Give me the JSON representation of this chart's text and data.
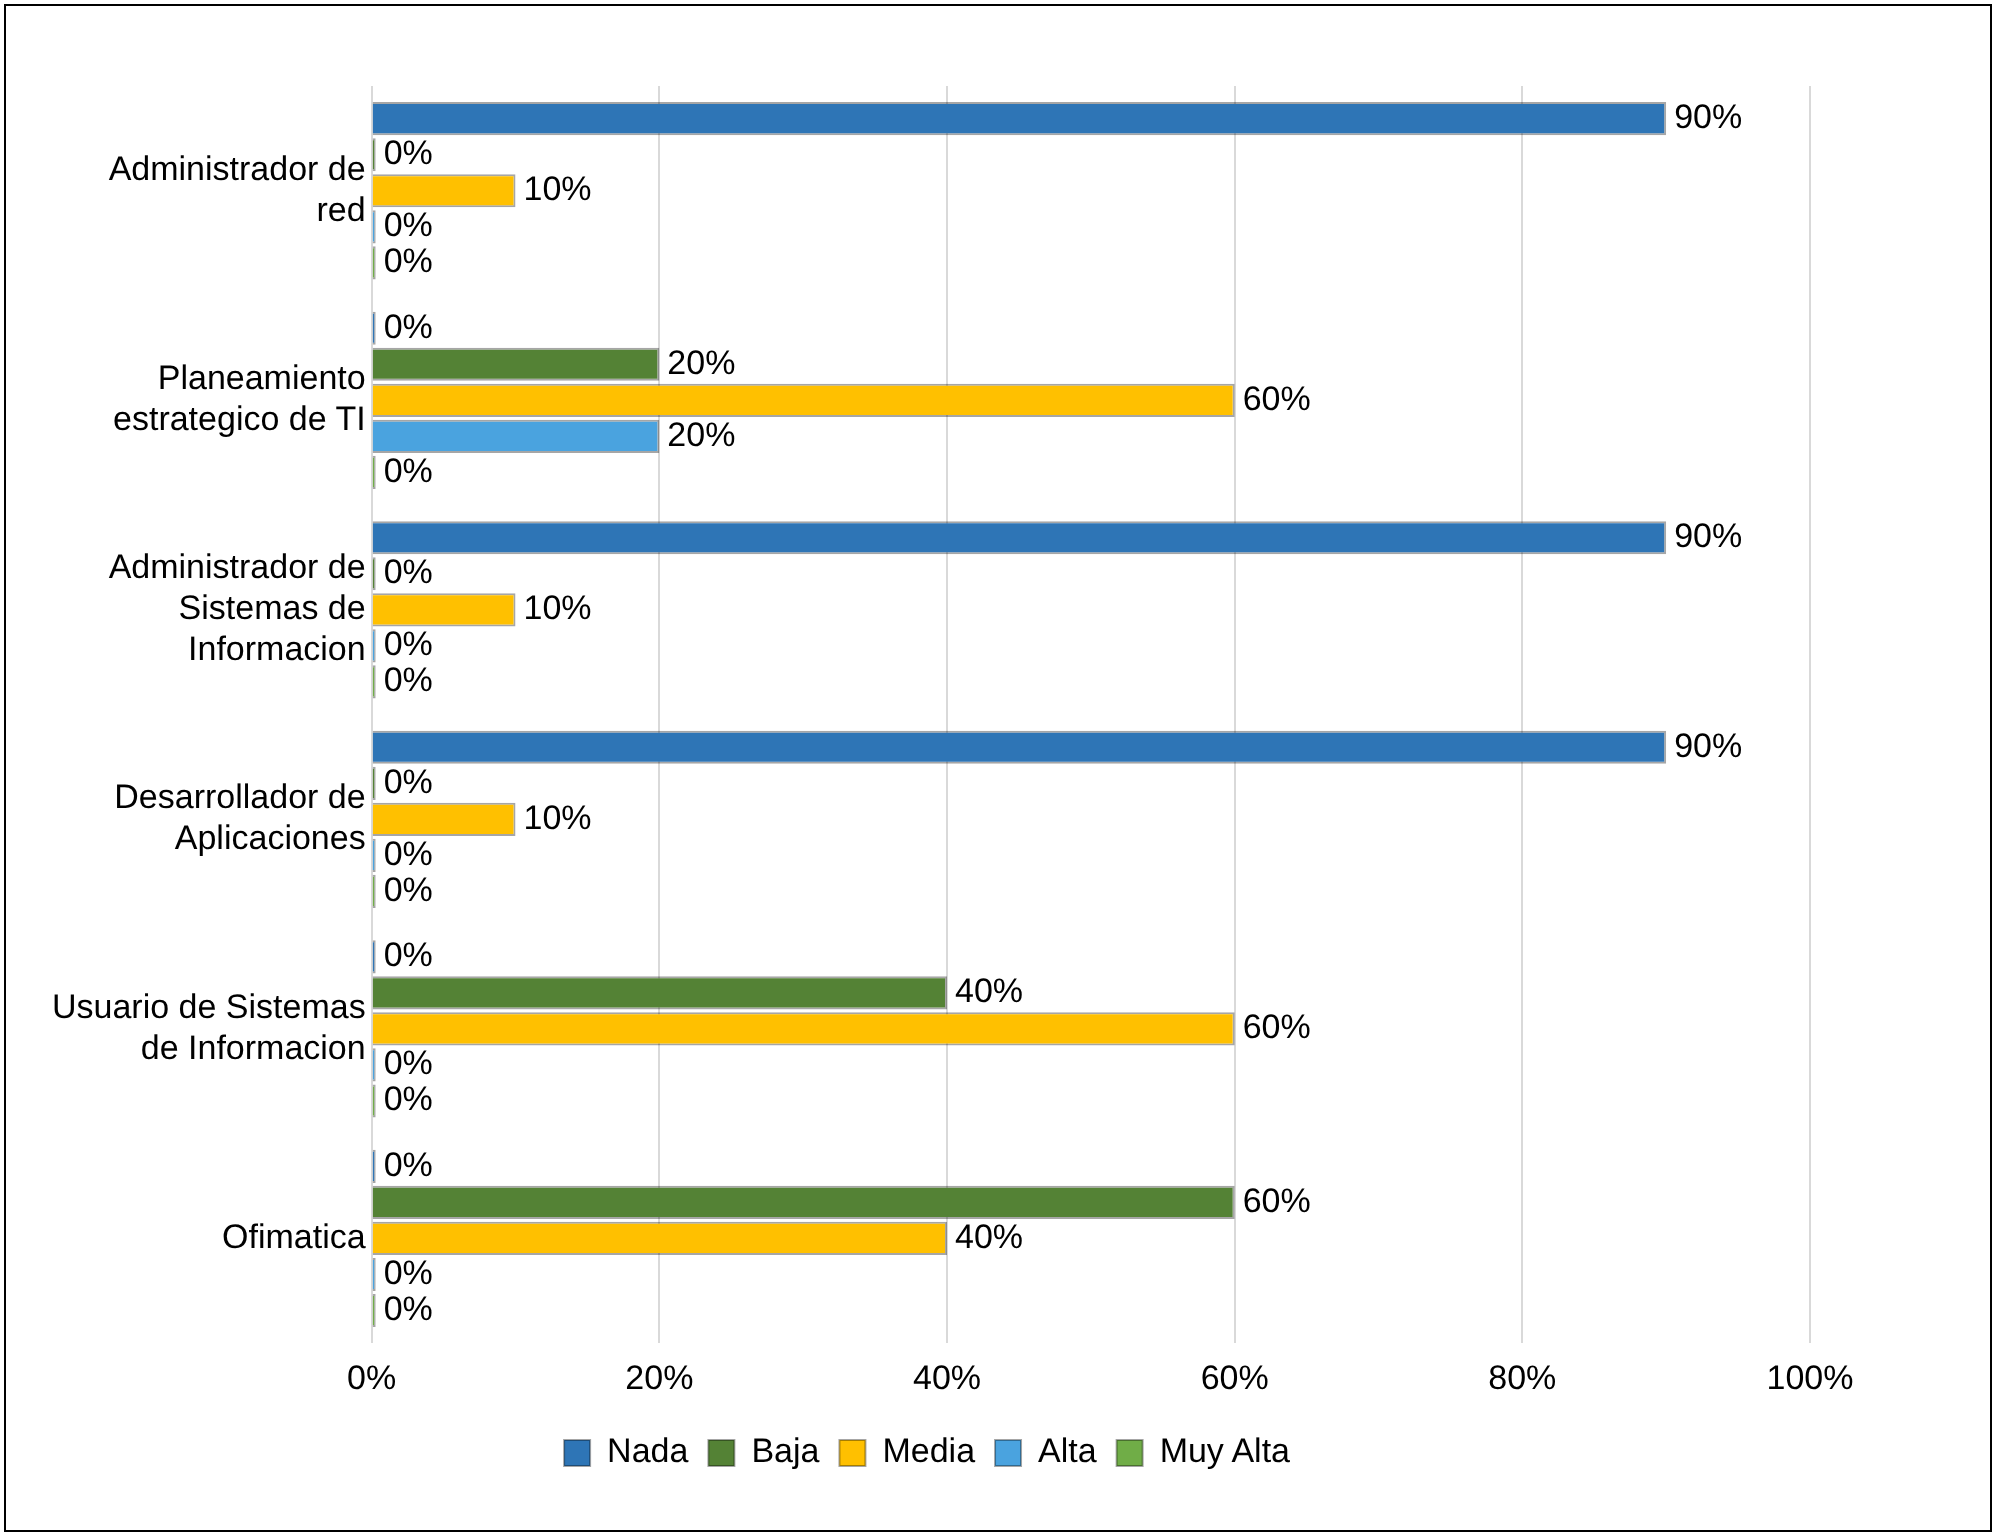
{
  "chart_data": {
    "type": "bar",
    "orientation": "horizontal",
    "categories": [
      "Administrador de red",
      "Planeamiento estrategico de TI",
      "Administrador de Sistemas de Informacion",
      "Desarrollador de Aplicaciones",
      "Usuario de Sistemas de Informacion",
      "Ofimatica"
    ],
    "series": [
      {
        "name": "Nada",
        "color": "#2e75b6",
        "values": [
          90,
          0,
          90,
          90,
          0,
          0
        ],
        "value_labels": [
          "90%",
          "0%",
          "90%",
          "90%",
          "0%",
          "0%"
        ]
      },
      {
        "name": "Baja",
        "color": "#548235",
        "values": [
          0,
          20,
          0,
          0,
          40,
          60
        ],
        "value_labels": [
          "0%",
          "20%",
          "0%",
          "0%",
          "40%",
          "60%"
        ]
      },
      {
        "name": "Media",
        "color": "#ffc000",
        "values": [
          10,
          60,
          10,
          10,
          60,
          40
        ],
        "value_labels": [
          "10%",
          "60%",
          "10%",
          "10%",
          "60%",
          "40%"
        ]
      },
      {
        "name": "Alta",
        "color": "#4aa3df",
        "values": [
          0,
          20,
          0,
          0,
          0,
          0
        ],
        "value_labels": [
          "0%",
          "20%",
          "0%",
          "0%",
          "0%",
          "0%"
        ]
      },
      {
        "name": "Muy Alta",
        "color": "#70ad47",
        "values": [
          0,
          0,
          0,
          0,
          0,
          0
        ],
        "value_labels": [
          "0%",
          "0%",
          "0%",
          "0%",
          "0%",
          "0%"
        ]
      }
    ],
    "xlim": [
      0,
      100
    ],
    "xticks": [
      {
        "value": 0,
        "label": "0%"
      },
      {
        "value": 20,
        "label": "20%"
      },
      {
        "value": 40,
        "label": "40%"
      },
      {
        "value": 60,
        "label": "60%"
      },
      {
        "value": 80,
        "label": "80%"
      },
      {
        "value": 100,
        "label": "100%"
      }
    ],
    "grid": "x",
    "legend": "bottom"
  }
}
